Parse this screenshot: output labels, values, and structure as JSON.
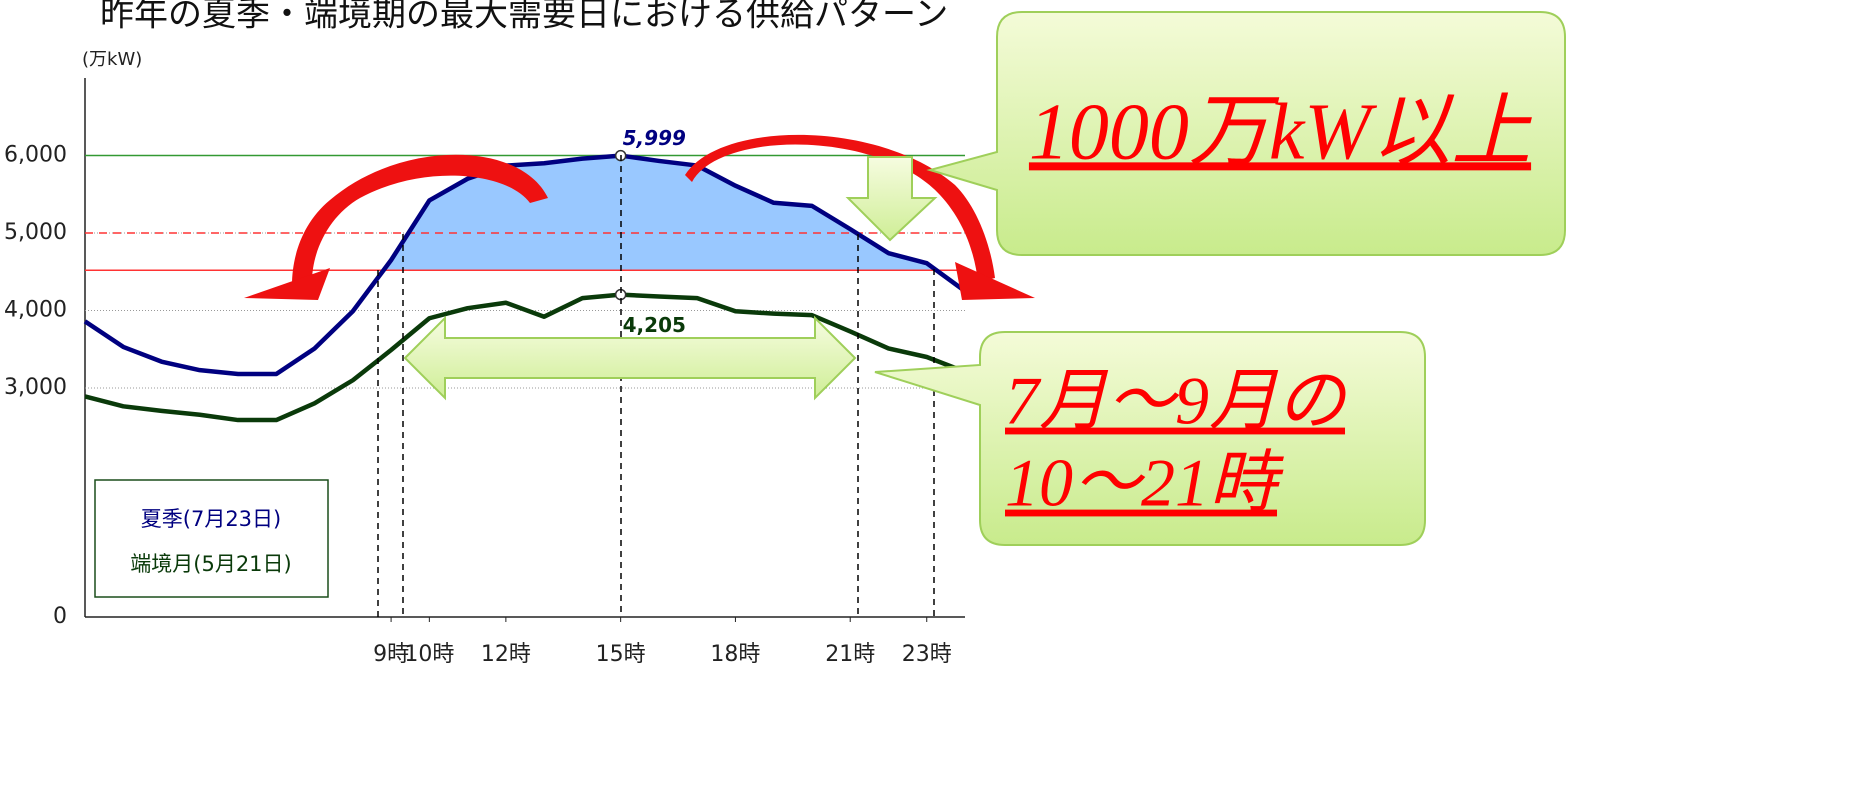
{
  "chart_data": {
    "type": "line",
    "title": "昨年の夏季・端境期の最大需要日における供給パターン",
    "y_axis_label": "(万kW)",
    "x": [
      1,
      2,
      3,
      4,
      5,
      6,
      7,
      8,
      9,
      10,
      11,
      12,
      13,
      14,
      15,
      16,
      17,
      18,
      19,
      20,
      21,
      22,
      23,
      24
    ],
    "xlim": [
      1,
      24
    ],
    "xticks": [
      {
        "value": 9,
        "label": "9時"
      },
      {
        "value": 10,
        "label": "10時"
      },
      {
        "value": 12,
        "label": "12時"
      },
      {
        "value": 15,
        "label": "15時"
      },
      {
        "value": 18,
        "label": "18時"
      },
      {
        "value": 21,
        "label": "21時"
      },
      {
        "value": 23,
        "label": "23時"
      }
    ],
    "ylim": [
      0,
      7000
    ],
    "yticks": [
      0,
      {
        "value": 3000,
        "label": "3,000"
      },
      {
        "value": 4000,
        "label": "4,000"
      },
      {
        "value": 5000,
        "label": "5,000"
      },
      {
        "value": 6000,
        "label": "6,000"
      }
    ],
    "series": [
      {
        "name": "夏季(7月23日)",
        "color": "#000080",
        "values": [
          3860,
          3530,
          3340,
          3230,
          3180,
          3180,
          3510,
          3990,
          4650,
          5420,
          5700,
          5870,
          5900,
          5960,
          5999,
          5930,
          5870,
          5610,
          5390,
          5350,
          5050,
          4740,
          4610,
          4250
        ],
        "data_label": {
          "index": 14,
          "label": "5,999"
        }
      },
      {
        "name": "端境月(5月21日)",
        "color": "#0a3a0a",
        "values": [
          2890,
          2760,
          2700,
          2650,
          2580,
          2580,
          2800,
          3100,
          3490,
          3900,
          4030,
          4100,
          3920,
          4160,
          4205,
          4180,
          4160,
          3990,
          3960,
          3940,
          3730,
          3510,
          3400,
          3210
        ],
        "data_label": {
          "index": 14,
          "label": "4,205"
        }
      }
    ],
    "reference_lines": [
      {
        "value": 6000,
        "color": "#339933",
        "style": "solid"
      },
      {
        "value": 5000,
        "color": "#ff3333",
        "style": "dashed"
      },
      {
        "value": 4520,
        "color": "#ff3333",
        "style": "solid"
      }
    ],
    "fill_above": 4520,
    "fill_color": "#99c8ff",
    "annotations": [
      "1000万kW以上",
      "7月～9月の",
      "10～21時"
    ]
  }
}
